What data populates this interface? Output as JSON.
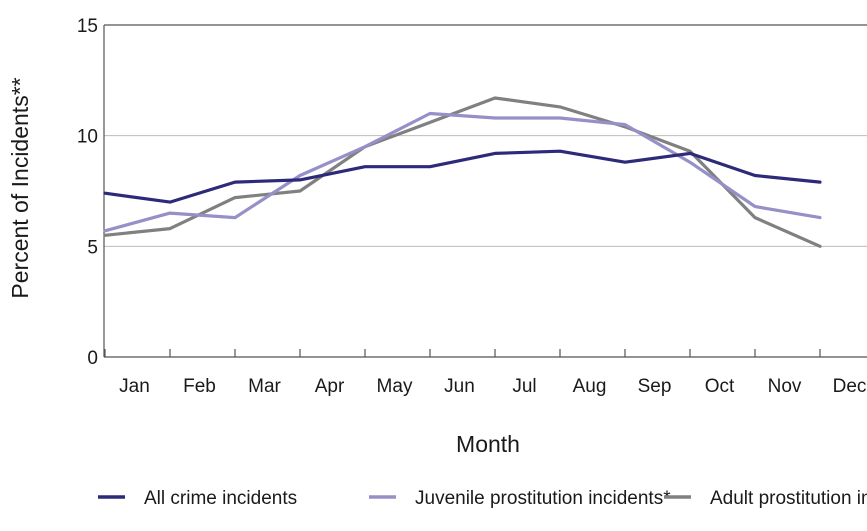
{
  "chart_data": {
    "type": "line",
    "title": "",
    "xlabel": "Month",
    "ylabel": "Percent of Incidents**",
    "categories": [
      "Jan",
      "Feb",
      "Mar",
      "Apr",
      "May",
      "Jun",
      "Jul",
      "Aug",
      "Sep",
      "Oct",
      "Nov",
      "Dec"
    ],
    "ylim": [
      0,
      15
    ],
    "yticks": [
      "0",
      "5",
      "10",
      "15"
    ],
    "grid": true,
    "legend_position": "bottom",
    "series": [
      {
        "name": "All crime incidents",
        "color": "#2e2a7a",
        "values": [
          7.4,
          7.0,
          7.9,
          8.0,
          8.6,
          8.6,
          9.2,
          9.3,
          8.8,
          9.2,
          8.2,
          7.9
        ]
      },
      {
        "name": "Juvenile prostitution incidents*",
        "color": "#9590c7",
        "values": [
          5.7,
          6.5,
          6.3,
          8.2,
          9.5,
          11.0,
          10.8,
          10.8,
          10.5,
          8.8,
          6.8,
          6.3
        ]
      },
      {
        "name": "Adult prostitution incidents",
        "color": "#808080",
        "values": [
          5.5,
          5.8,
          7.2,
          7.5,
          9.5,
          10.6,
          11.7,
          11.3,
          10.4,
          9.3,
          6.3,
          5.0
        ]
      }
    ]
  }
}
